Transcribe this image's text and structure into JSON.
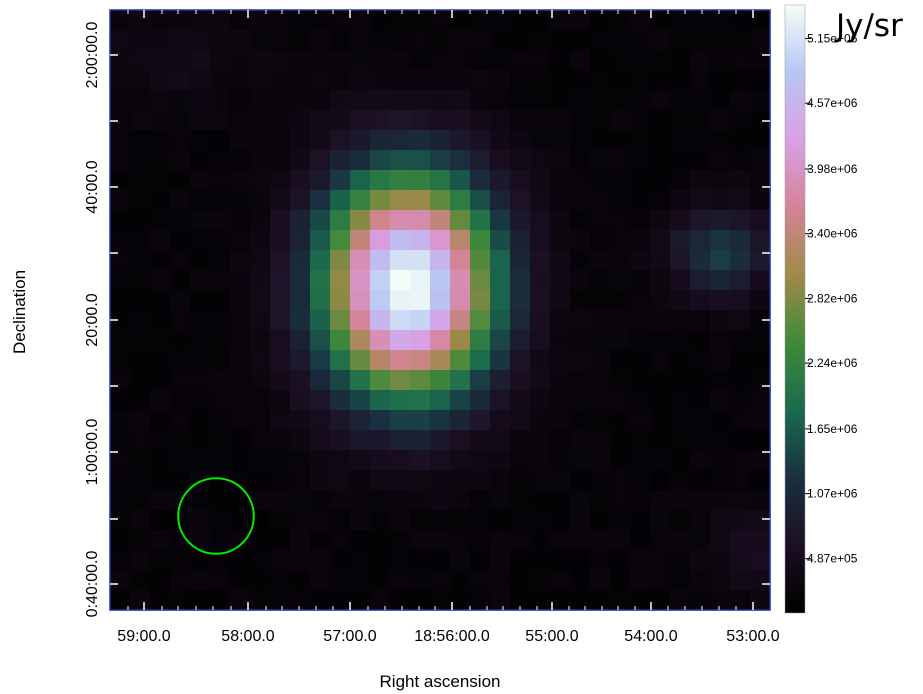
{
  "chart_data": {
    "type": "heatmap",
    "xlabel": "Right ascension",
    "ylabel": "Declination",
    "x_tick_labels": [
      "59:00.0",
      "58:00.0",
      "57:00.0",
      "18:56:00.0",
      "55:00.0",
      "54:00.0",
      "53:00.0"
    ],
    "y_tick_labels": [
      "0:40:00.0",
      "1:00:00.0",
      "20:00.0",
      "40:00.0",
      "2:00:00.0"
    ],
    "colorbar": {
      "unit": "Jy/sr",
      "tick_labels": [
        "4.87e+05",
        "1.07e+06",
        "1.65e+06",
        "2.24e+06",
        "2.82e+06",
        "3.40e+06",
        "3.98e+06",
        "4.57e+06",
        "5.15e+06"
      ],
      "tick_values": [
        487000,
        1070000,
        1650000,
        2240000,
        2820000,
        3400000,
        3980000,
        4570000,
        5150000
      ],
      "range": [
        0,
        5450000
      ],
      "colormap": [
        "#000000",
        "#1c0f23",
        "#1a3040",
        "#1a6a4e",
        "#3f8a3a",
        "#9f8a48",
        "#d48396",
        "#d9a0e6",
        "#b7c6f3",
        "#f4fff8"
      ]
    },
    "grid_size": [
      33,
      30
    ],
    "sources": [
      {
        "ra_index": 14.4,
        "dec_index": 13.3,
        "peak": 5400000,
        "sigma_x": 3.0,
        "sigma_y": 3.9
      },
      {
        "ra_index": 30.0,
        "dec_index": 11.6,
        "peak": 1200000,
        "sigma_x": 1.8,
        "sigma_y": 1.6
      },
      {
        "ra_index": 31.5,
        "dec_index": 26.5,
        "peak": 400000,
        "sigma_x": 1.5,
        "sigma_y": 1.5
      },
      {
        "ra_index": 3.0,
        "dec_index": 2.0,
        "peak": 250000,
        "sigma_x": 3.0,
        "sigma_y": 2.0
      }
    ],
    "background": 160000,
    "beam": {
      "ra_index": 4.8,
      "dec_index": 24.8,
      "radius": 1.8,
      "color": "#00ee00"
    }
  }
}
